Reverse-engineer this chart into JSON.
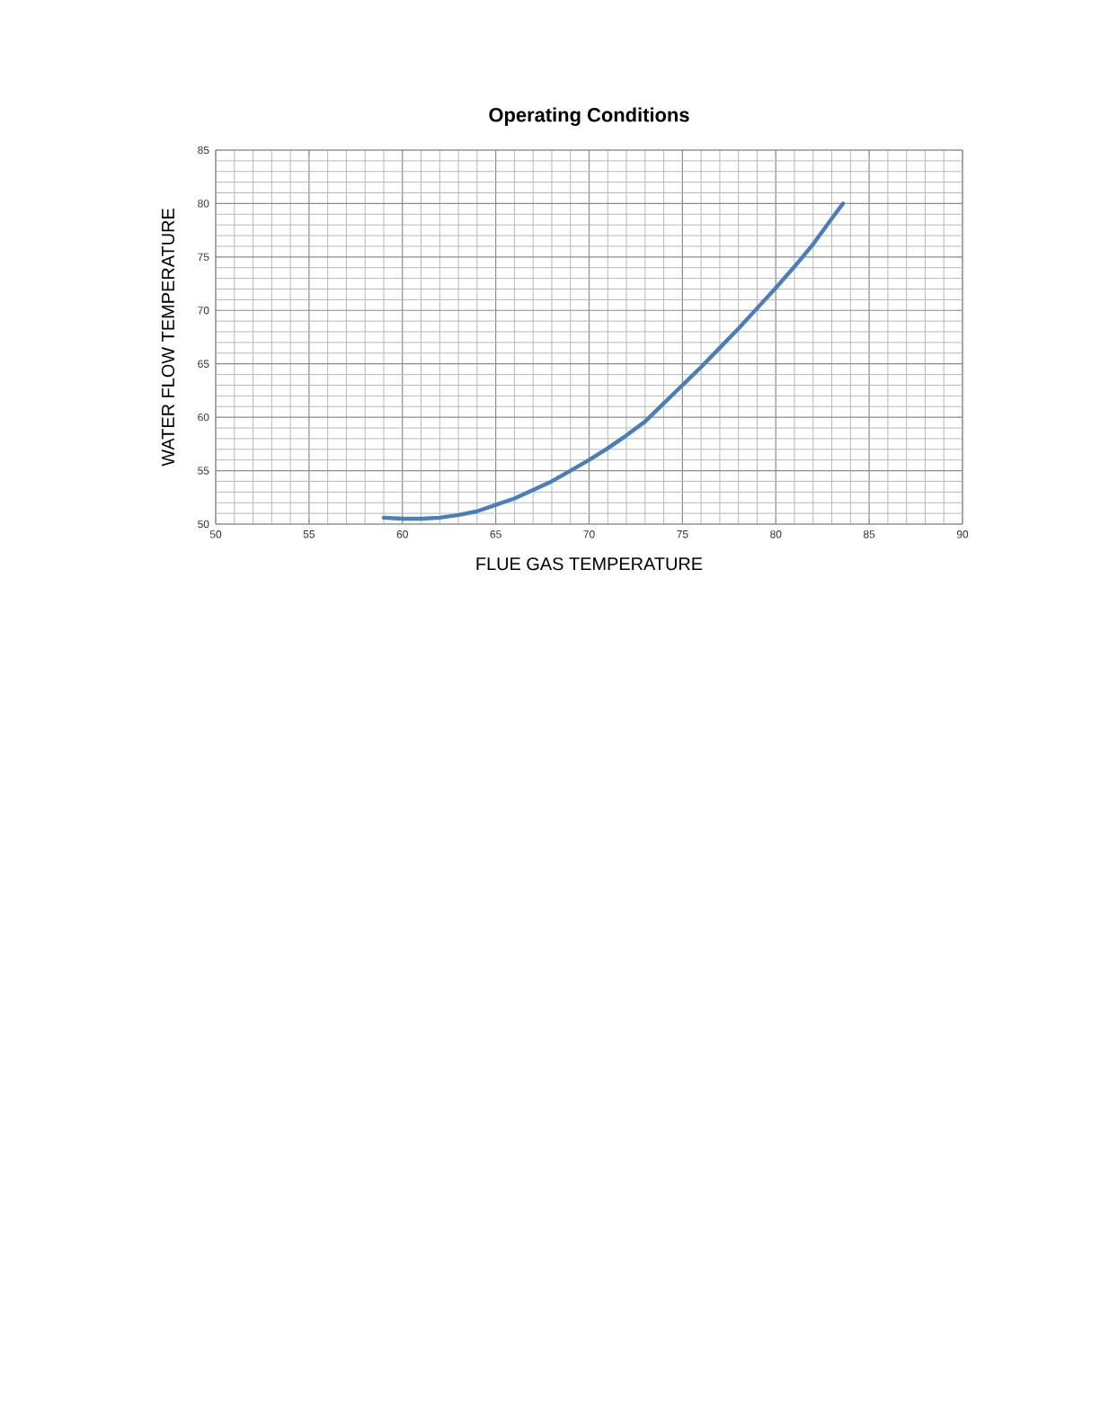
{
  "chart_data": {
    "type": "line",
    "title": "Operating Conditions",
    "xlabel": "FLUE GAS TEMPERATURE",
    "ylabel": "WATER FLOW TEMPERATURE",
    "xlim": [
      50,
      90
    ],
    "xticks": [
      50,
      55,
      60,
      65,
      70,
      75,
      80,
      85,
      90
    ],
    "ylim": [
      50,
      85
    ],
    "yticks": [
      50,
      55,
      60,
      65,
      70,
      75,
      80,
      85
    ],
    "grid": true,
    "marker": "none",
    "line_style": "solid",
    "series": [
      {
        "color": "#4a7ebb",
        "x": [
          59,
          60,
          61,
          62,
          63,
          64,
          65,
          66,
          67,
          68,
          69,
          70,
          71,
          72,
          73,
          74,
          75,
          76,
          77,
          78,
          79,
          80,
          81,
          82,
          83,
          83.6
        ],
        "values": [
          50.6,
          50.5,
          50.5,
          50.6,
          50.85,
          51.2,
          51.8,
          52.4,
          53.2,
          54.0,
          55.0,
          56.0,
          57.1,
          58.3,
          59.6,
          61.3,
          63.0,
          64.7,
          66.5,
          68.3,
          70.2,
          72.1,
          74.1,
          76.2,
          78.6,
          80.0
        ]
      }
    ]
  }
}
